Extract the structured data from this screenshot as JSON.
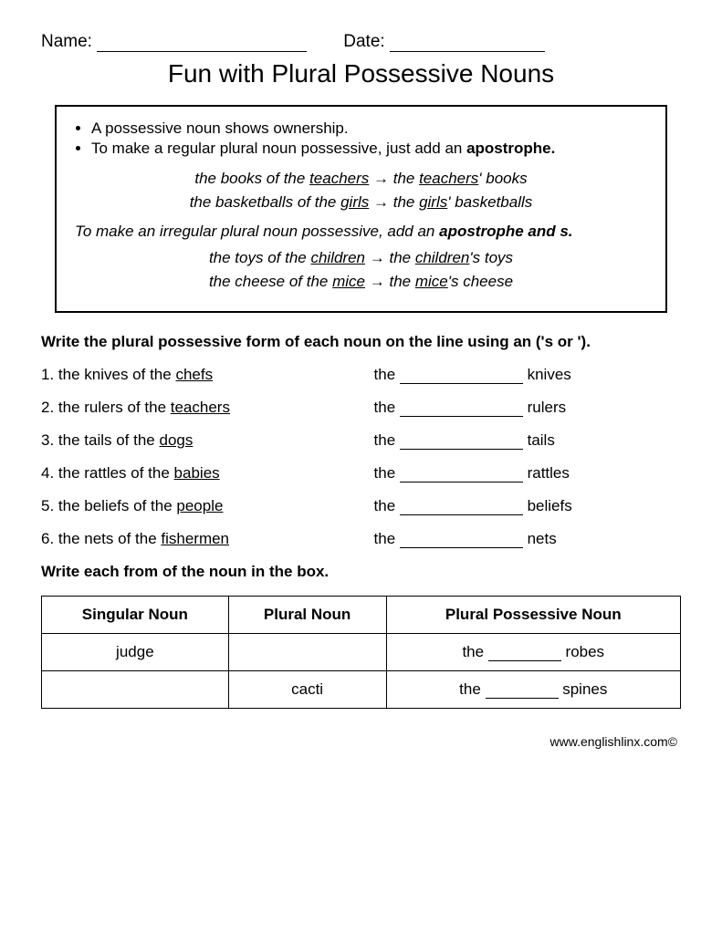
{
  "header": {
    "name_label": "Name:",
    "date_label": "Date:"
  },
  "title": "Fun with Plural Possessive Nouns",
  "rules": {
    "bullet1": "A possessive noun shows ownership.",
    "bullet2_pre": "To make a regular plural noun possessive, just add an ",
    "bullet2_bold": "apostrophe.",
    "ex1_pre": "the books of the ",
    "ex1_u1": "teachers",
    "ex1_arrow": " → ",
    "ex1_mid": "the ",
    "ex1_u2": "teachers",
    "ex1_post": "' books",
    "ex2_pre": "the basketballs of the ",
    "ex2_u1": "girls",
    "ex2_arrow": " → ",
    "ex2_mid": "the ",
    "ex2_u2": "girls",
    "ex2_post": "' basketballs",
    "rule2_pre": "To make an irregular plural noun possessive, add an ",
    "rule2_bold": "apostrophe and s.",
    "ex3_pre": "the toys of the ",
    "ex3_u1": "children",
    "ex3_arrow": " → ",
    "ex3_mid": "the ",
    "ex3_u2": "children",
    "ex3_post": "'s toys",
    "ex4_pre": "the cheese of the ",
    "ex4_u1": "mice",
    "ex4_arrow": " → ",
    "ex4_mid": "the ",
    "ex4_u2": "mice",
    "ex4_post": "'s cheese"
  },
  "instruction1": "Write the plural possessive form of each noun on the line using an ('s or ').",
  "questions": [
    {
      "num": "1.",
      "left_pre": "the knives of the ",
      "left_u": "chefs",
      "right_pre": "the ",
      "right_post": " knives"
    },
    {
      "num": "2.",
      "left_pre": "the rulers of the ",
      "left_u": "teachers",
      "right_pre": "the ",
      "right_post": " rulers"
    },
    {
      "num": "3.",
      "left_pre": "the tails of the ",
      "left_u": "dogs",
      "right_pre": "the ",
      "right_post": " tails"
    },
    {
      "num": "4.",
      "left_pre": "the rattles of the ",
      "left_u": "babies",
      "right_pre": "the ",
      "right_post": " rattles"
    },
    {
      "num": "5.",
      "left_pre": "the beliefs of the ",
      "left_u": "people",
      "right_pre": "the ",
      "right_post": " beliefs"
    },
    {
      "num": "6.",
      "left_pre": "the nets of the ",
      "left_u": "fishermen",
      "right_pre": "the ",
      "right_post": " nets"
    }
  ],
  "instruction2": "Write each from of the noun in the box.",
  "table": {
    "headers": [
      "Singular Noun",
      "Plural Noun",
      "Plural Possessive Noun"
    ],
    "rows": [
      {
        "c1": "judge",
        "c2": "",
        "c3_pre": "the ",
        "c3_post": " robes"
      },
      {
        "c1": "",
        "c2": "cacti",
        "c3_pre": "the ",
        "c3_post": " spines"
      }
    ]
  },
  "footer": "www.englishlinx.com©"
}
